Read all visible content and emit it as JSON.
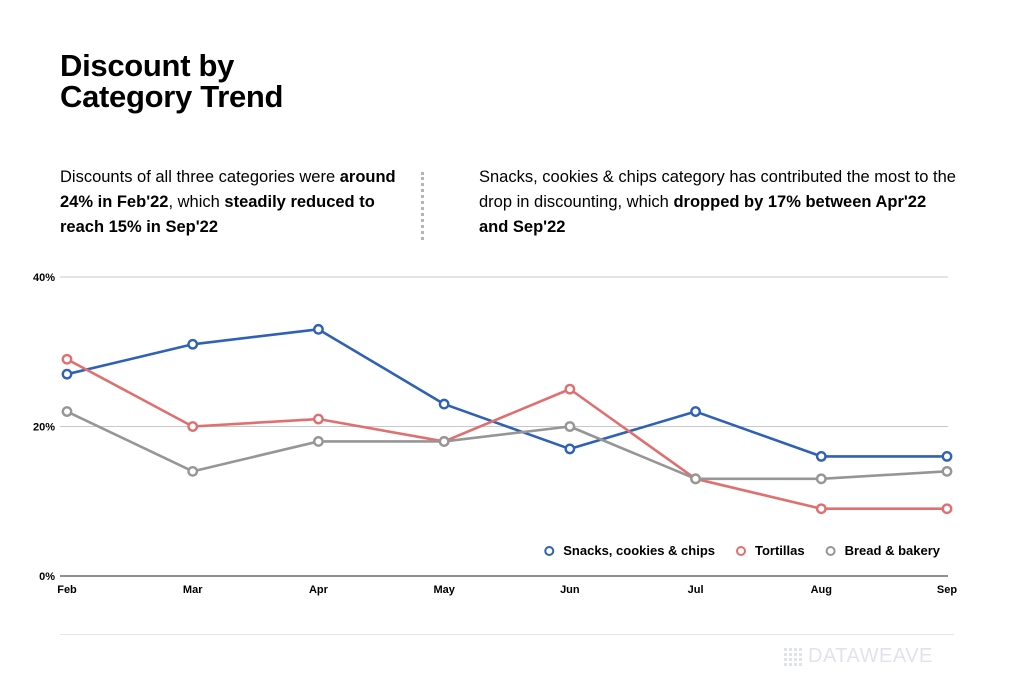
{
  "header": {
    "title_line1": "Discount by",
    "title_line2": "Category Trend"
  },
  "insights": {
    "left": {
      "t1": "Discounts of all three categories were ",
      "b1": "around 24% in Feb'22",
      "t2": ", which ",
      "b2": "steadily reduced to reach 15% in Sep'22"
    },
    "right": {
      "t1": "Snacks, cookies & chips category has contributed the most to the drop in discounting, which ",
      "b1": "dropped by 17% between Apr'22 and Sep'22"
    }
  },
  "chart_data": {
    "type": "line",
    "categories": [
      "Feb",
      "Mar",
      "Apr",
      "May",
      "Jun",
      "Jul",
      "Aug",
      "Sep"
    ],
    "y_ticks": [
      "0%",
      "20%",
      "40%"
    ],
    "ylim": [
      0,
      40
    ],
    "grid": true,
    "legend_position": "bottom-right",
    "series": [
      {
        "name": "Snacks, cookies & chips",
        "color": "#2f62b4",
        "values": [
          27,
          31,
          33,
          23,
          17,
          22,
          16,
          16
        ]
      },
      {
        "name": "Tortillas",
        "color": "#e07070",
        "values": [
          29,
          20,
          21,
          18,
          25,
          13,
          9,
          9
        ]
      },
      {
        "name": "Bread & bakery",
        "color": "#969696",
        "values": [
          22,
          14,
          18,
          18,
          20,
          13,
          13,
          14
        ]
      }
    ]
  },
  "footer": {
    "brand": "DATAWEAVE",
    "brand_icon": "grid-dots-icon"
  }
}
